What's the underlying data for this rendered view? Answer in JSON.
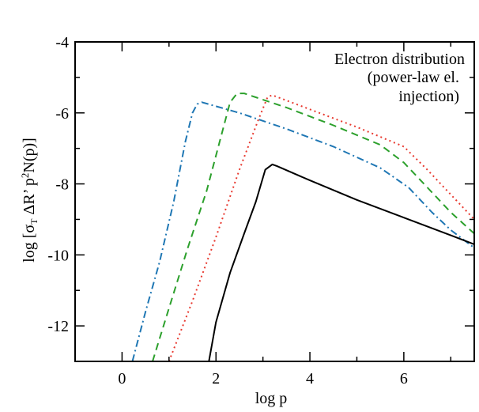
{
  "chart_data": {
    "type": "line",
    "xlabel": "log  p",
    "ylabel": "log [σ_T ΔR' p²N(p)]",
    "xlim": [
      -1,
      7.5
    ],
    "ylim": [
      -13,
      -4
    ],
    "xticks": [
      {
        "value": 0,
        "label": "0"
      },
      {
        "value": 2,
        "label": "2"
      },
      {
        "value": 4,
        "label": "4"
      },
      {
        "value": 6,
        "label": "6"
      }
    ],
    "yticks": [
      {
        "value": -4,
        "label": "-4"
      },
      {
        "value": -6,
        "label": "-6"
      },
      {
        "value": -8,
        "label": "-8"
      },
      {
        "value": -10,
        "label": "-10"
      },
      {
        "value": -12,
        "label": "-12"
      }
    ],
    "annotation": [
      "Electron distribution",
      "(power-law el.",
      "injection)"
    ],
    "grid": false,
    "series": [
      {
        "color": "#1f77b4",
        "style": "dash-dot",
        "points": [
          [
            0.22,
            -13
          ],
          [
            0.5,
            -11.6
          ],
          [
            0.8,
            -10.2
          ],
          [
            1.1,
            -8.5
          ],
          [
            1.35,
            -6.8
          ],
          [
            1.5,
            -6.0
          ],
          [
            1.6,
            -5.75
          ],
          [
            1.7,
            -5.7
          ],
          [
            2.5,
            -6.0
          ],
          [
            3.5,
            -6.45
          ],
          [
            4.5,
            -6.95
          ],
          [
            5.5,
            -7.55
          ],
          [
            6.1,
            -8.1
          ],
          [
            6.6,
            -8.8
          ],
          [
            7.0,
            -9.3
          ],
          [
            7.5,
            -9.8
          ]
        ]
      },
      {
        "color": "#2ca02c",
        "style": "dashed",
        "points": [
          [
            0.65,
            -13
          ],
          [
            1.0,
            -11.5
          ],
          [
            1.4,
            -9.8
          ],
          [
            1.8,
            -8.2
          ],
          [
            2.1,
            -6.7
          ],
          [
            2.3,
            -5.7
          ],
          [
            2.45,
            -5.45
          ],
          [
            2.6,
            -5.45
          ],
          [
            3.5,
            -5.85
          ],
          [
            4.5,
            -6.35
          ],
          [
            5.5,
            -6.9
          ],
          [
            6.0,
            -7.4
          ],
          [
            6.5,
            -8.1
          ],
          [
            7.0,
            -8.8
          ],
          [
            7.5,
            -9.4
          ]
        ]
      },
      {
        "color": "#e8392f",
        "style": "dotted",
        "points": [
          [
            1.0,
            -13
          ],
          [
            1.5,
            -11.3
          ],
          [
            2.0,
            -9.5
          ],
          [
            2.5,
            -7.6
          ],
          [
            2.9,
            -6.2
          ],
          [
            3.1,
            -5.55
          ],
          [
            3.2,
            -5.5
          ],
          [
            4.0,
            -5.9
          ],
          [
            5.0,
            -6.4
          ],
          [
            6.0,
            -6.95
          ],
          [
            6.5,
            -7.6
          ],
          [
            7.0,
            -8.3
          ],
          [
            7.5,
            -9.0
          ]
        ]
      },
      {
        "color": "#000000",
        "style": "solid",
        "points": [
          [
            1.85,
            -13
          ],
          [
            2.0,
            -11.9
          ],
          [
            2.3,
            -10.5
          ],
          [
            2.6,
            -9.4
          ],
          [
            2.85,
            -8.5
          ],
          [
            3.05,
            -7.6
          ],
          [
            3.2,
            -7.45
          ],
          [
            3.3,
            -7.5
          ],
          [
            4.0,
            -7.9
          ],
          [
            5.0,
            -8.45
          ],
          [
            6.0,
            -8.95
          ],
          [
            7.0,
            -9.45
          ],
          [
            7.5,
            -9.7
          ]
        ]
      }
    ]
  }
}
